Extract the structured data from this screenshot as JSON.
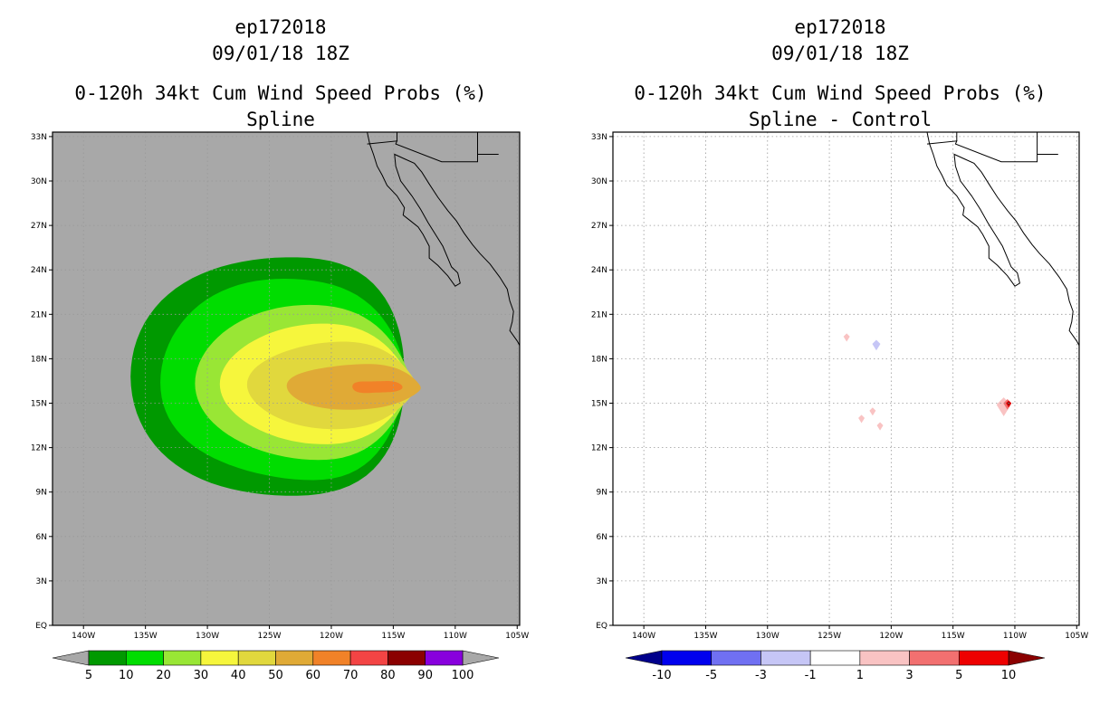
{
  "chart_data": [
    {
      "type": "heatmap",
      "title_lines": [
        "ep172018",
        "09/01/18 18Z",
        "0-120h 34kt Cum Wind Speed Probs (%)",
        "Spline"
      ],
      "x_ticks": [
        "140W",
        "135W",
        "130W",
        "125W",
        "120W",
        "115W",
        "110W",
        "105W"
      ],
      "y_ticks": [
        "EQ",
        "3N",
        "6N",
        "9N",
        "12N",
        "15N",
        "18N",
        "21N",
        "24N",
        "27N",
        "30N",
        "33N"
      ],
      "xlim": [
        -142.5,
        -104.8
      ],
      "ylim": [
        0,
        33.3
      ],
      "background": "#a8a8a8",
      "contours": [
        {
          "level": 5,
          "color": "#009900",
          "center": [
            -123.2,
            16.8
          ],
          "rx": 13.0,
          "ry": 8.3,
          "tail": 2.0
        },
        {
          "level": 10,
          "color": "#00dd00",
          "center": [
            -122.6,
            16.6
          ],
          "rx": 11.2,
          "ry": 6.9,
          "tail": 1.6
        },
        {
          "level": 20,
          "color": "#99e635",
          "center": [
            -121.4,
            16.4
          ],
          "rx": 9.6,
          "ry": 5.2,
          "tail": 1.3
        },
        {
          "level": 30,
          "color": "#f6f63c",
          "center": [
            -120.6,
            16.3
          ],
          "rx": 8.4,
          "ry": 4.0,
          "tail": 1.1
        },
        {
          "level": 40,
          "color": "#e1d83d",
          "center": [
            -119.4,
            16.2
          ],
          "rx": 7.4,
          "ry": 2.9,
          "tail": 1.0
        },
        {
          "level": 50,
          "color": "#e0aa36",
          "center": [
            -117.8,
            16.1
          ],
          "rx": 5.8,
          "ry": 1.55,
          "tail": 0.9
        },
        {
          "level": 60,
          "color": "#f18228",
          "center": [
            -116.2,
            16.1
          ],
          "rx": 2.1,
          "ry": 0.45,
          "tail": 0.5
        }
      ],
      "colorbar": {
        "labels": [
          "5",
          "10",
          "20",
          "30",
          "40",
          "50",
          "60",
          "70",
          "80",
          "90",
          "100"
        ],
        "colors": [
          "#009900",
          "#00dd00",
          "#99e635",
          "#f6f63c",
          "#e1d83d",
          "#e0aa36",
          "#f18228",
          "#f34444",
          "#8b0000",
          "#8800dd"
        ],
        "under_color": "#a8a8a8",
        "over_color": "#a8a8a8"
      }
    },
    {
      "type": "heatmap",
      "title_lines": [
        "ep172018",
        "09/01/18 18Z",
        "0-120h 34kt Cum Wind Speed Probs (%)",
        "Spline - Control"
      ],
      "x_ticks": [
        "140W",
        "135W",
        "130W",
        "125W",
        "120W",
        "115W",
        "110W",
        "105W"
      ],
      "y_ticks": [
        "EQ",
        "3N",
        "6N",
        "9N",
        "12N",
        "15N",
        "18N",
        "21N",
        "24N",
        "27N",
        "30N",
        "33N"
      ],
      "xlim": [
        -142.5,
        -104.8
      ],
      "ylim": [
        0,
        33.3
      ],
      "background": "#ffffff",
      "spots": [
        {
          "lon": -110.9,
          "lat": 14.9,
          "level": 1,
          "color": "#f9c3c3"
        },
        {
          "lon": -110.6,
          "lat": 15.0,
          "level": 3,
          "color": "#f27070"
        },
        {
          "lon": -110.5,
          "lat": 15.0,
          "level": 5,
          "color": "#ee0000"
        },
        {
          "lon": -110.5,
          "lat": 15.0,
          "level": 10,
          "color": "#8b0000"
        },
        {
          "lon": -122.4,
          "lat": 14.0,
          "level": 1,
          "color": "#f9c3c3"
        },
        {
          "lon": -121.5,
          "lat": 14.5,
          "level": 1,
          "color": "#f9c3c3"
        },
        {
          "lon": -120.9,
          "lat": 13.5,
          "level": 1,
          "color": "#f9c3c3"
        },
        {
          "lon": -123.6,
          "lat": 19.5,
          "level": 1,
          "color": "#f9c3c3"
        },
        {
          "lon": -121.2,
          "lat": 19.0,
          "level": -3,
          "color": "#c6c6f6"
        }
      ],
      "colorbar": {
        "labels": [
          "-10",
          "-5",
          "-3",
          "-1",
          "1",
          "3",
          "5",
          "10"
        ],
        "colors": [
          "#0000ee",
          "#7070f2",
          "#c6c6f6",
          "#ffffff",
          "#f9c3c3",
          "#f27070",
          "#ee0000"
        ],
        "under_color": "#00008b",
        "over_color": "#8b0000"
      }
    }
  ]
}
